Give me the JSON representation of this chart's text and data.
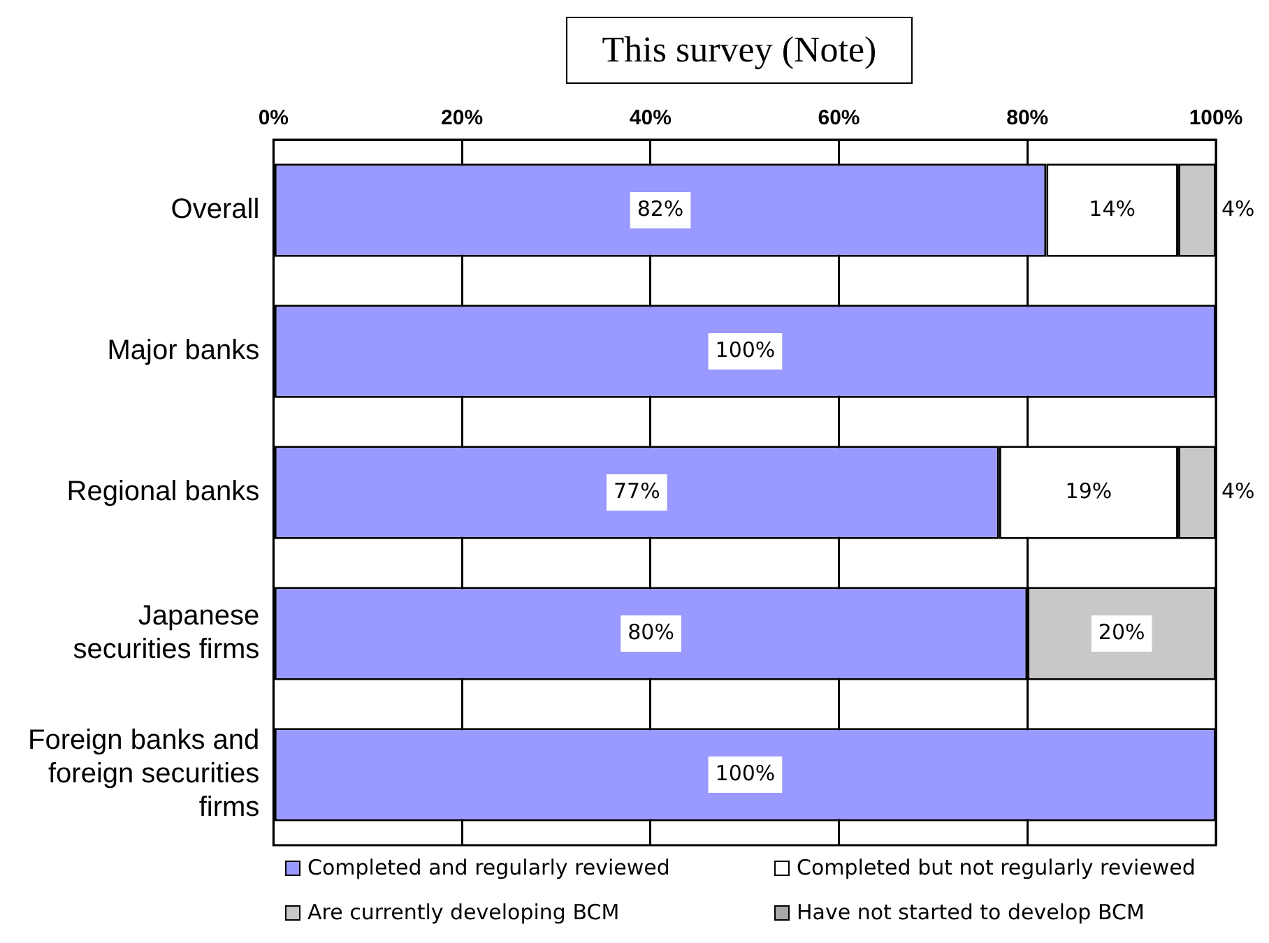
{
  "chart_data": {
    "type": "bar",
    "orientation": "horizontal",
    "stacked": true,
    "title": "This survey (Note)",
    "categories": [
      "Overall",
      "Major banks",
      "Regional banks",
      "Japanese securities firms",
      "Foreign banks and foreign securities firms"
    ],
    "series": [
      {
        "name": "Completed and regularly reviewed",
        "color": "#9999ff",
        "values": [
          82,
          100,
          77,
          80,
          100
        ],
        "value_labels": [
          "82%",
          "100%",
          "77%",
          "80%",
          "100%"
        ]
      },
      {
        "name": "Completed but not regularly reviewed",
        "color": "#ffffff",
        "values": [
          14,
          0,
          19,
          0,
          0
        ],
        "value_labels": [
          "14%",
          null,
          "19%",
          null,
          null
        ]
      },
      {
        "name": "Are currently developing BCM",
        "color": "#c8c8c8",
        "values": [
          4,
          0,
          4,
          20,
          0
        ],
        "value_labels": [
          "4%",
          null,
          "4%",
          "20%",
          null
        ]
      },
      {
        "name": "Have not started to develop BCM",
        "color": "#a8a8a8",
        "values": [
          0,
          0,
          0,
          0,
          0
        ],
        "value_labels": [
          null,
          null,
          null,
          null,
          null
        ]
      }
    ],
    "xlim": [
      0,
      100
    ],
    "xticks": [
      {
        "value": 0,
        "label": "0%"
      },
      {
        "value": 20,
        "label": "20%"
      },
      {
        "value": 40,
        "label": "40%"
      },
      {
        "value": 60,
        "label": "60%"
      },
      {
        "value": 80,
        "label": "80%"
      },
      {
        "value": 100,
        "label": "100%"
      }
    ],
    "grid": "x",
    "legend": "bottom"
  }
}
